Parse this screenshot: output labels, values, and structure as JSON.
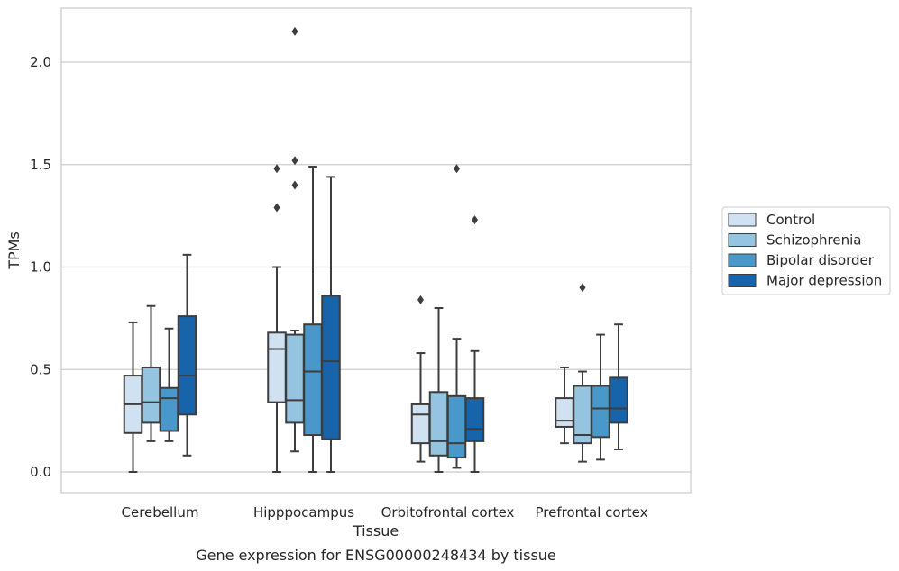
{
  "chart_data": {
    "type": "box",
    "title": "",
    "caption": "Gene expression for ENSG00000248434 by tissue",
    "xlabel": "Tissue",
    "ylabel": "TPMs",
    "ylim": [
      -0.1,
      2.27
    ],
    "yticks": [
      0.0,
      0.5,
      1.0,
      1.5,
      2.0
    ],
    "ytick_labels": [
      "0.0",
      "0.5",
      "1.0",
      "1.5",
      "2.0"
    ],
    "grid": true,
    "legend_position": "right",
    "categories": [
      "Cerebellum",
      "Hipppocampus",
      "Orbitofrontal cortex",
      "Prefrontal cortex"
    ],
    "series": [
      {
        "name": "Control",
        "color": "#d0e1f2",
        "boxes": [
          {
            "whisker_low": 0.0,
            "q1": 0.19,
            "median": 0.33,
            "q3": 0.47,
            "whisker_high": 0.73,
            "outliers": []
          },
          {
            "whisker_low": 0.0,
            "q1": 0.34,
            "median": 0.6,
            "q3": 0.68,
            "whisker_high": 1.0,
            "outliers": [
              1.29,
              1.48
            ]
          },
          {
            "whisker_low": 0.05,
            "q1": 0.14,
            "median": 0.28,
            "q3": 0.33,
            "whisker_high": 0.58,
            "outliers": [
              0.84
            ]
          },
          {
            "whisker_low": 0.14,
            "q1": 0.22,
            "median": 0.25,
            "q3": 0.36,
            "whisker_high": 0.51,
            "outliers": []
          }
        ]
      },
      {
        "name": "Schizophrenia",
        "color": "#94c4df",
        "boxes": [
          {
            "whisker_low": 0.15,
            "q1": 0.24,
            "median": 0.34,
            "q3": 0.51,
            "whisker_high": 0.81,
            "outliers": []
          },
          {
            "whisker_low": 0.1,
            "q1": 0.24,
            "median": 0.35,
            "q3": 0.67,
            "whisker_high": 0.69,
            "outliers": [
              1.4,
              1.52,
              2.15
            ]
          },
          {
            "whisker_low": 0.0,
            "q1": 0.08,
            "median": 0.15,
            "q3": 0.39,
            "whisker_high": 0.8,
            "outliers": []
          },
          {
            "whisker_low": 0.05,
            "q1": 0.14,
            "median": 0.18,
            "q3": 0.42,
            "whisker_high": 0.49,
            "outliers": [
              0.9
            ]
          }
        ]
      },
      {
        "name": "Bipolar disorder",
        "color": "#4a98c9",
        "boxes": [
          {
            "whisker_low": 0.15,
            "q1": 0.2,
            "median": 0.36,
            "q3": 0.41,
            "whisker_high": 0.7,
            "outliers": []
          },
          {
            "whisker_low": 0.0,
            "q1": 0.18,
            "median": 0.49,
            "q3": 0.72,
            "whisker_high": 1.49,
            "outliers": []
          },
          {
            "whisker_low": 0.02,
            "q1": 0.07,
            "median": 0.14,
            "q3": 0.37,
            "whisker_high": 0.65,
            "outliers": [
              1.48
            ]
          },
          {
            "whisker_low": 0.06,
            "q1": 0.17,
            "median": 0.31,
            "q3": 0.42,
            "whisker_high": 0.67,
            "outliers": []
          }
        ]
      },
      {
        "name": "Major depression",
        "color": "#1764ab",
        "boxes": [
          {
            "whisker_low": 0.08,
            "q1": 0.28,
            "median": 0.47,
            "q3": 0.76,
            "whisker_high": 1.06,
            "outliers": []
          },
          {
            "whisker_low": 0.0,
            "q1": 0.16,
            "median": 0.54,
            "q3": 0.86,
            "whisker_high": 1.44,
            "outliers": []
          },
          {
            "whisker_low": 0.0,
            "q1": 0.15,
            "median": 0.21,
            "q3": 0.36,
            "whisker_high": 0.59,
            "outliers": [
              1.23
            ]
          },
          {
            "whisker_low": 0.11,
            "q1": 0.24,
            "median": 0.31,
            "q3": 0.46,
            "whisker_high": 0.72,
            "outliers": []
          }
        ]
      }
    ]
  }
}
